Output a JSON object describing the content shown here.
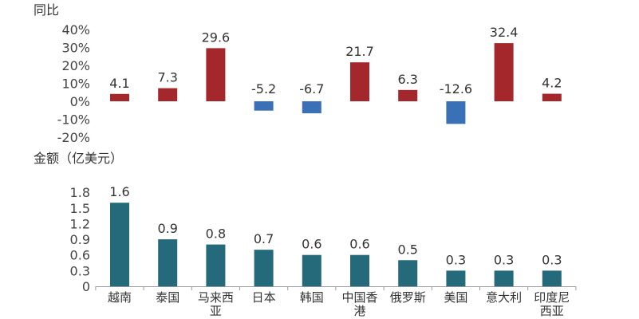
{
  "chart_data": [
    {
      "type": "bar",
      "ylabel": "同比",
      "categories": [
        "越南",
        "泰国",
        "马来西亚",
        "日本",
        "韩国",
        "中国香港",
        "俄罗斯",
        "美国",
        "意大利",
        "印度尼西亚"
      ],
      "values": [
        4.1,
        7.3,
        29.6,
        -5.2,
        -6.7,
        21.7,
        6.3,
        -12.6,
        32.4,
        4.2
      ],
      "value_labels": [
        "4.1",
        "7.3",
        "29.6",
        "-5.2",
        "-6.7",
        "21.7",
        "6.3",
        "-12.6",
        "32.4",
        "4.2"
      ],
      "yticks": [
        "40%",
        "30%",
        "20%",
        "10%",
        "0%",
        "-10%",
        "-20%"
      ],
      "ylim": [
        -20,
        40
      ],
      "colors": {
        "positive": "#A4272B",
        "negative": "#3A70B5"
      },
      "grid": false
    },
    {
      "type": "bar",
      "ylabel": "金额（亿美元）",
      "categories": [
        "越南",
        "泰国",
        "马来西亚",
        "日本",
        "韩国",
        "中国香港",
        "俄罗斯",
        "美国",
        "意大利",
        "印度尼西亚"
      ],
      "category_labels": [
        [
          "越南"
        ],
        [
          "泰国"
        ],
        [
          "马来西",
          "亚"
        ],
        [
          "日本"
        ],
        [
          "韩国"
        ],
        [
          "中国香",
          "港"
        ],
        [
          "俄罗斯"
        ],
        [
          "美国"
        ],
        [
          "意大利"
        ],
        [
          "印度尼",
          "西亚"
        ]
      ],
      "values": [
        1.6,
        0.9,
        0.8,
        0.7,
        0.6,
        0.6,
        0.5,
        0.3,
        0.3,
        0.3
      ],
      "value_labels": [
        "1.6",
        "0.9",
        "0.8",
        "0.7",
        "0.6",
        "0.6",
        "0.5",
        "0.3",
        "0.3",
        "0.3"
      ],
      "yticks": [
        "1.8",
        "1.5",
        "1.2",
        "0.9",
        "0.6",
        "0.3",
        "0"
      ],
      "ylim": [
        0,
        1.8
      ],
      "colors": {
        "bar": "#256A7A",
        "axis": "#999999"
      },
      "grid": false
    }
  ]
}
